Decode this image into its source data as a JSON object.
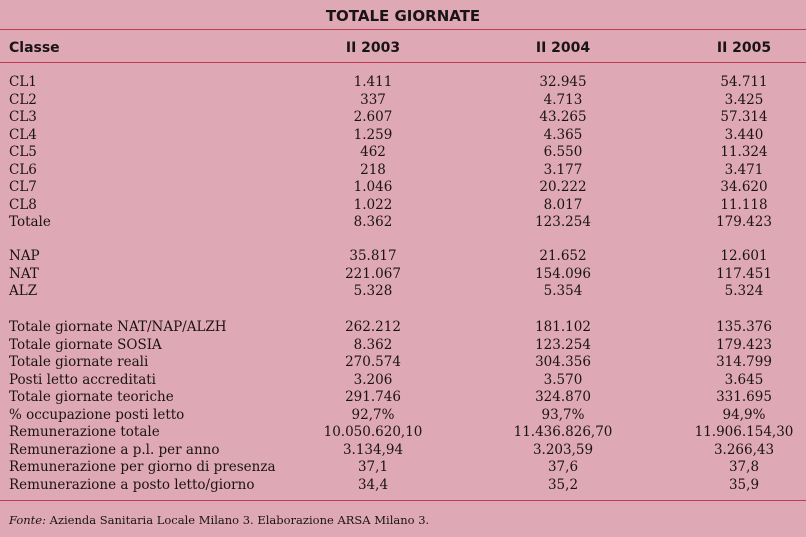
{
  "title": "TOTALE GIORNATE",
  "header": {
    "classe": "Classe",
    "col1": "II 2003",
    "col2": "II 2004",
    "col3": "II 2005"
  },
  "groups": [
    {
      "rows": [
        {
          "label": "CL1",
          "v": [
            "1.411",
            "32.945",
            "54.711"
          ]
        },
        {
          "label": "CL2",
          "v": [
            "337",
            "4.713",
            "3.425"
          ]
        },
        {
          "label": "CL3",
          "v": [
            "2.607",
            "43.265",
            "57.314"
          ]
        },
        {
          "label": "CL4",
          "v": [
            "1.259",
            "4.365",
            "3.440"
          ]
        },
        {
          "label": "CL5",
          "v": [
            "462",
            "6.550",
            "11.324"
          ]
        },
        {
          "label": "CL6",
          "v": [
            "218",
            "3.177",
            "3.471"
          ]
        },
        {
          "label": "CL7",
          "v": [
            "1.046",
            "20.222",
            "34.620"
          ]
        },
        {
          "label": "CL8",
          "v": [
            "1.022",
            "8.017",
            "11.118"
          ]
        },
        {
          "label": "Totale",
          "v": [
            "8.362",
            "123.254",
            "179.423"
          ]
        }
      ]
    },
    {
      "rows": [
        {
          "label": "NAP",
          "v": [
            "35.817",
            "21.652",
            "12.601"
          ]
        },
        {
          "label": "NAT",
          "v": [
            "221.067",
            "154.096",
            "117.451"
          ]
        },
        {
          "label": "ALZ",
          "v": [
            "5.328",
            "5.354",
            "5.324"
          ]
        }
      ]
    },
    {
      "rows": [
        {
          "label": "Totale giornate NAT/NAP/ALZH",
          "v": [
            "262.212",
            "181.102",
            "135.376"
          ]
        },
        {
          "label": "Totale giornate SOSIA",
          "v": [
            "8.362",
            "123.254",
            "179.423"
          ]
        },
        {
          "label": "Totale giornate reali",
          "v": [
            "270.574",
            "304.356",
            "314.799"
          ]
        },
        {
          "label": "Posti letto accreditati",
          "v": [
            "3.206",
            "3.570",
            "3.645"
          ]
        },
        {
          "label": "Totale giornate teoriche",
          "v": [
            "291.746",
            "324.870",
            "331.695"
          ]
        },
        {
          "label": "% occupazione posti letto",
          "v": [
            "92,7%",
            "93,7%",
            "94,9%"
          ]
        },
        {
          "label": "Remunerazione totale",
          "v": [
            "10.050.620,10",
            "11.436.826,70",
            "11.906.154,30"
          ]
        },
        {
          "label": "Remunerazione a p.l. per anno",
          "v": [
            "3.134,94",
            "3.203,59",
            "3.266,43"
          ]
        },
        {
          "label": "Remunerazione per giorno di presenza",
          "v": [
            "37,1",
            "37,6",
            "37,8"
          ]
        },
        {
          "label": "Remunerazione a posto letto/giorno",
          "v": [
            "34,4",
            "35,2",
            "35,9"
          ]
        }
      ]
    }
  ],
  "source": {
    "label": "Fonte:",
    "text": " Azienda Sanitaria Locale Milano 3. Elaborazione ARSA Milano 3."
  }
}
